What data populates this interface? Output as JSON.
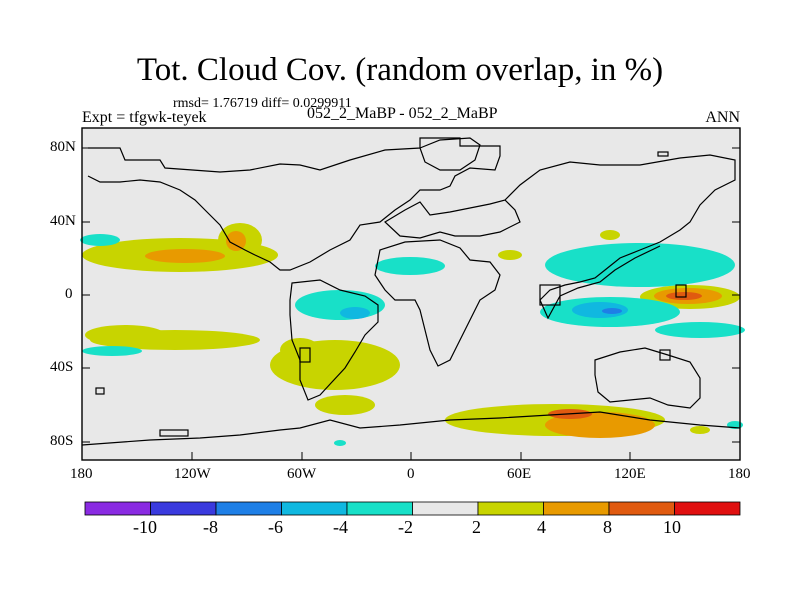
{
  "title": "Tot. Cloud Cov. (random overlap, in %)",
  "stats": "rmsd= 1.76719 diff= 0.0299911",
  "expt": "Expt = tfgwk-teyek",
  "case": "052_2_MaBP - 052_2_MaBP",
  "season": "ANN",
  "lat_ticks": [
    "80N",
    "40N",
    "0",
    "40S",
    "80S"
  ],
  "lon_ticks": [
    "180",
    "120W",
    "60W",
    "0",
    "60E",
    "120E",
    "180"
  ],
  "colorbar": {
    "labels": [
      "-10",
      "-8",
      "-6",
      "-4",
      "-2",
      "2",
      "4",
      "8",
      "10"
    ],
    "colors": [
      "#8a2be2",
      "#3a3ade",
      "#1e7fe6",
      "#10b8e0",
      "#18e0c8",
      "#e8e8e8",
      "#c8d400",
      "#e89a00",
      "#e05a10",
      "#e01010"
    ]
  }
}
